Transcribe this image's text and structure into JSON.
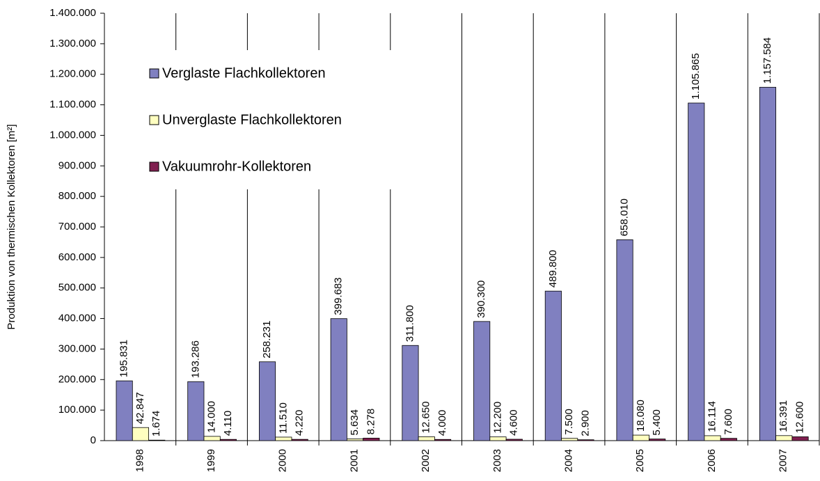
{
  "chart_data": {
    "type": "bar",
    "y_label": "Produktion von thermischen Kollektoren [m²]",
    "categories": [
      "1998",
      "1999",
      "2000",
      "2001",
      "2002",
      "2003",
      "2004",
      "2005",
      "2006",
      "2007"
    ],
    "series": [
      {
        "name": "Verglaste Flachkollektoren",
        "color": "#8080c0",
        "values": [
          195831,
          193286,
          258231,
          399683,
          311800,
          390300,
          489800,
          658010,
          1105865,
          1157584
        ],
        "value_labels": [
          "195.831",
          "193.286",
          "258.231",
          "399.683",
          "311.800",
          "390.300",
          "489.800",
          "658.010",
          "1.105.865",
          "1.157.584"
        ]
      },
      {
        "name": "Unverglaste Flachkollektoren",
        "color": "#ffffc0",
        "values": [
          42847,
          14000,
          11510,
          5634,
          12650,
          12200,
          7500,
          18080,
          16114,
          16391
        ],
        "value_labels": [
          "42.847",
          "14.000",
          "11.510",
          "5.634",
          "12.650",
          "12.200",
          "7.500",
          "18.080",
          "16.114",
          "16.391"
        ]
      },
      {
        "name": "Vakuumrohr-Kollektoren",
        "color": "#802050",
        "values": [
          1674,
          4110,
          4220,
          8278,
          4000,
          4600,
          2900,
          5400,
          7600,
          12600
        ],
        "value_labels": [
          "1.674",
          "4.110",
          "4.220",
          "8.278",
          "4.000",
          "4.600",
          "2.900",
          "5.400",
          "7.600",
          "12.600"
        ]
      }
    ],
    "ylim": [
      0,
      1400000
    ],
    "yticks": [
      0,
      {
        "value": 100000,
        "label": "100.000"
      },
      {
        "value": 200000,
        "label": "200.000"
      },
      {
        "value": 300000,
        "label": "300.000"
      },
      {
        "value": 400000,
        "label": "400.000"
      },
      {
        "value": 500000,
        "label": "500.000"
      },
      {
        "value": 600000,
        "label": "600.000"
      },
      {
        "value": 700000,
        "label": "700.000"
      },
      {
        "value": 800000,
        "label": "800.000"
      },
      {
        "value": 900000,
        "label": "900.000"
      },
      {
        "value": 1000000,
        "label": "1.000.000"
      },
      {
        "value": 1100000,
        "label": "1.100.000"
      },
      {
        "value": 1200000,
        "label": "1.200.000"
      },
      {
        "value": 1300000,
        "label": "1.300.000"
      },
      {
        "value": 1400000,
        "label": "1.400.000"
      }
    ],
    "legend": "upper left"
  }
}
